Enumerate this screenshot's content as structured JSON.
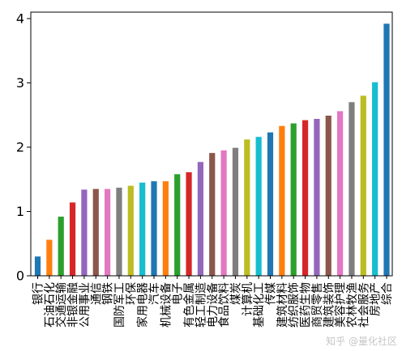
{
  "chart_data": {
    "type": "bar",
    "title": "",
    "xlabel": "",
    "ylabel": "",
    "ylim": [
      0,
      4.1
    ],
    "yticks": [
      0,
      1,
      2,
      3,
      4
    ],
    "grid": false,
    "legend": "none",
    "categories": [
      "银行",
      "石油石化",
      "交通运输",
      "非银金融",
      "公用事业",
      "通信",
      "钢铁",
      "国防军工",
      "环保",
      "家用电器",
      "汽车",
      "机械设备",
      "电子",
      "有色金属",
      "轻工制造",
      "电力设备",
      "食品饮料",
      "煤炭",
      "计算机",
      "基础化工",
      "传媒",
      "建筑材料",
      "纺织服饰",
      "医药生物",
      "商贸零售",
      "建筑装饰",
      "美容护理",
      "农林牧渔",
      "社会服务",
      "房地产",
      "综合"
    ],
    "values": [
      0.3,
      0.56,
      0.92,
      1.14,
      1.34,
      1.35,
      1.35,
      1.37,
      1.4,
      1.45,
      1.47,
      1.47,
      1.58,
      1.61,
      1.77,
      1.91,
      1.95,
      1.99,
      2.12,
      2.16,
      2.23,
      2.33,
      2.37,
      2.42,
      2.44,
      2.49,
      2.56,
      2.7,
      2.8,
      3.01,
      3.92
    ],
    "colors": [
      "#1f77b4",
      "#ff7f0e",
      "#2ca02c",
      "#d62728",
      "#9467bd",
      "#8c564b",
      "#e377c2",
      "#7f7f7f",
      "#bcbd22",
      "#17becf"
    ]
  },
  "watermark": "知乎 @量化社区"
}
